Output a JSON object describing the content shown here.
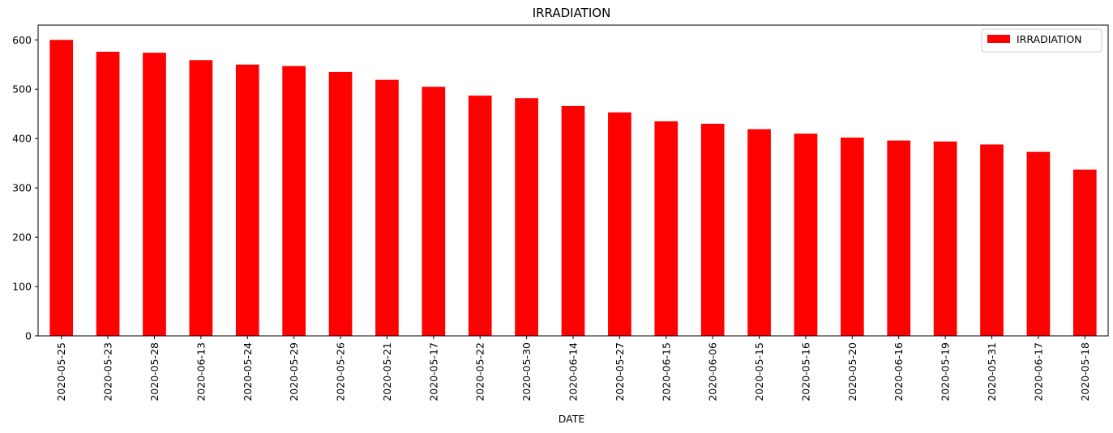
{
  "chart_data": {
    "type": "bar",
    "title": "IRRADIATION",
    "xlabel": "DATE",
    "ylabel": "",
    "categories": [
      "2020-05-25",
      "2020-05-23",
      "2020-05-28",
      "2020-06-13",
      "2020-05-24",
      "2020-05-29",
      "2020-05-26",
      "2020-05-21",
      "2020-05-17",
      "2020-05-22",
      "2020-05-30",
      "2020-06-14",
      "2020-05-27",
      "2020-06-15",
      "2020-06-06",
      "2020-05-15",
      "2020-05-16",
      "2020-05-20",
      "2020-06-16",
      "2020-05-19",
      "2020-05-31",
      "2020-06-17",
      "2020-05-18"
    ],
    "series": [
      {
        "name": "IRRADIATION",
        "color": "#ff0000",
        "values": [
          600,
          576,
          574,
          559,
          550,
          547,
          535,
          519,
          505,
          487,
          482,
          466,
          453,
          435,
          430,
          419,
          410,
          402,
          396,
          394,
          388,
          373,
          337
        ]
      }
    ],
    "ylim": [
      0,
      630
    ],
    "yticks": [
      0,
      100,
      200,
      300,
      400,
      500,
      600
    ],
    "legend_position": "top-right",
    "grid": false
  }
}
